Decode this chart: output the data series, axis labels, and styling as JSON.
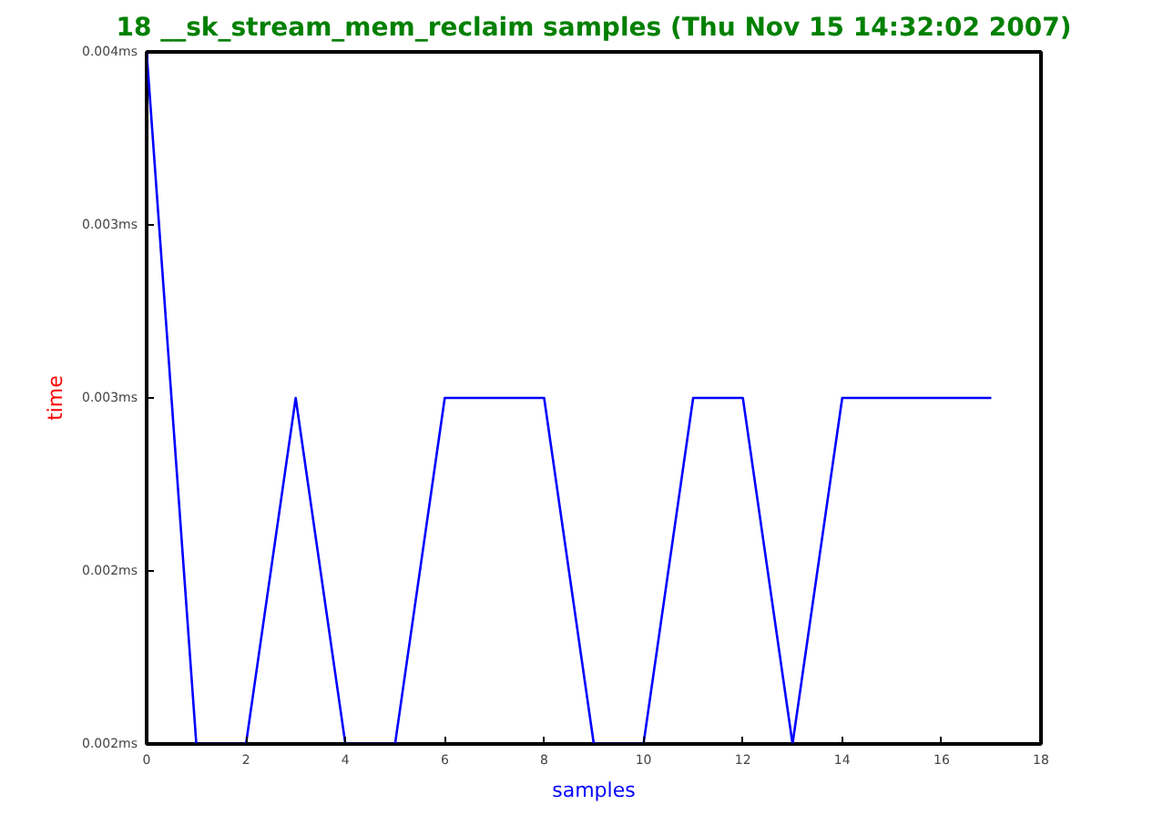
{
  "chart_data": {
    "type": "line",
    "title": "18 __sk_stream_mem_reclaim samples (Thu Nov 15 14:32:02 2007)",
    "xlabel": "samples",
    "ylabel": "time",
    "x": [
      0,
      1,
      2,
      3,
      4,
      5,
      6,
      7,
      8,
      9,
      10,
      11,
      12,
      13,
      14,
      15,
      16,
      17
    ],
    "series": [
      {
        "color": "#0000ff",
        "values": [
          0.004,
          0.002,
          0.002,
          0.003,
          0.002,
          0.002,
          0.003,
          0.003,
          0.003,
          0.002,
          0.002,
          0.003,
          0.003,
          0.002,
          0.003,
          0.003,
          0.003,
          0.003
        ]
      }
    ],
    "xlim": [
      0,
      18
    ],
    "xticks": [
      0,
      2,
      4,
      6,
      8,
      10,
      12,
      14,
      16,
      18
    ],
    "ylim": [
      0.002,
      0.004
    ],
    "yticks": [
      {
        "value": 0.002,
        "label": "0.002ms"
      },
      {
        "value": 0.0025,
        "label": "0.002ms"
      },
      {
        "value": 0.003,
        "label": "0.003ms"
      },
      {
        "value": 0.0035,
        "label": "0.003ms"
      },
      {
        "value": 0.004,
        "label": "0.004ms"
      }
    ],
    "grid": false,
    "marker": "none",
    "line_style": "solid"
  }
}
